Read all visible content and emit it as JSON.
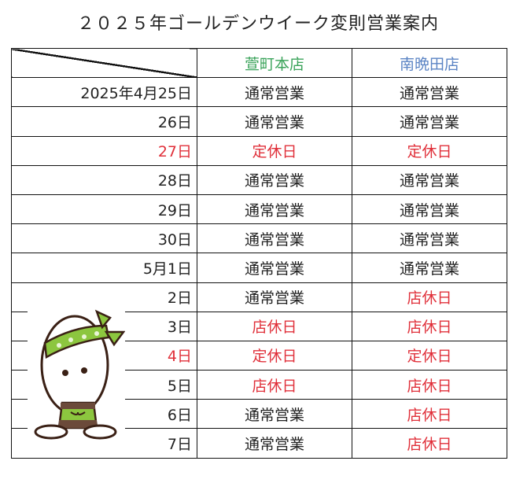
{
  "title": "２０２５年ゴールデンウイーク変則営業案内",
  "stores": [
    {
      "name": "萱町本店",
      "color": "#3aa35a"
    },
    {
      "name": "南晩田店",
      "color": "#5b84c4"
    }
  ],
  "colors": {
    "closed": "#e0303a"
  },
  "rows": [
    {
      "date": "2025年4月25日",
      "a": "通常営業",
      "b": "通常営業",
      "date_red": false,
      "a_red": false,
      "b_red": false
    },
    {
      "date": "26日",
      "a": "通常営業",
      "b": "通常営業",
      "date_red": false,
      "a_red": false,
      "b_red": false
    },
    {
      "date": "27日",
      "a": "定休日",
      "b": "定休日",
      "date_red": true,
      "a_red": true,
      "b_red": true
    },
    {
      "date": "28日",
      "a": "通常営業",
      "b": "通常営業",
      "date_red": false,
      "a_red": false,
      "b_red": false
    },
    {
      "date": "29日",
      "a": "通常営業",
      "b": "通常営業",
      "date_red": false,
      "a_red": false,
      "b_red": false
    },
    {
      "date": "30日",
      "a": "通常営業",
      "b": "通常営業",
      "date_red": false,
      "a_red": false,
      "b_red": false
    },
    {
      "date": "5月1日",
      "a": "通常営業",
      "b": "通常営業",
      "date_red": false,
      "a_red": false,
      "b_red": false
    },
    {
      "date": "2日",
      "a": "通常営業",
      "b": "店休日",
      "date_red": false,
      "a_red": false,
      "b_red": true
    },
    {
      "date": "3日",
      "a": "店休日",
      "b": "店休日",
      "date_red": false,
      "a_red": true,
      "b_red": true
    },
    {
      "date": "4日",
      "a": "定休日",
      "b": "定休日",
      "date_red": true,
      "a_red": true,
      "b_red": true
    },
    {
      "date": "5日",
      "a": "店休日",
      "b": "店休日",
      "date_red": false,
      "a_red": true,
      "b_red": true
    },
    {
      "date": "6日",
      "a": "通常営業",
      "b": "店休日",
      "date_red": false,
      "a_red": false,
      "b_red": true
    },
    {
      "date": "7日",
      "a": "通常営業",
      "b": "店休日",
      "date_red": false,
      "a_red": false,
      "b_red": true
    }
  ],
  "mascot": {
    "icon": "rice-grain-mascot-with-gift"
  }
}
